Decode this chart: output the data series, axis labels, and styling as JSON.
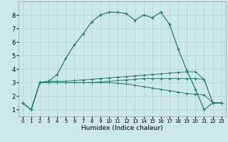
{
  "xlabel": "Humidex (Indice chaleur)",
  "background_color": "#cce8e8",
  "grid_color": "#b8d8d8",
  "line_color": "#267a6a",
  "xlim": [
    -0.5,
    23.5
  ],
  "ylim": [
    0.5,
    9.0
  ],
  "xticks": [
    0,
    1,
    2,
    3,
    4,
    5,
    6,
    7,
    8,
    9,
    10,
    11,
    12,
    13,
    14,
    15,
    16,
    17,
    18,
    19,
    20,
    21,
    22,
    23
  ],
  "yticks": [
    1,
    2,
    3,
    4,
    5,
    6,
    7,
    8
  ],
  "line1_x": [
    0,
    1,
    2,
    3,
    4,
    5,
    6,
    7,
    8,
    9,
    10,
    11,
    12,
    13,
    14,
    15,
    16,
    17,
    18,
    19,
    20,
    21,
    22,
    23
  ],
  "line1_y": [
    1.5,
    1.0,
    3.0,
    3.1,
    3.6,
    4.8,
    5.8,
    6.6,
    7.5,
    8.0,
    8.2,
    8.2,
    8.1,
    7.6,
    8.0,
    7.8,
    8.2,
    7.3,
    5.5,
    3.9,
    2.5,
    1.0,
    1.5,
    1.5
  ],
  "line2_x": [
    0,
    1,
    2,
    3,
    4,
    5,
    6,
    7,
    8,
    9,
    10,
    11,
    12,
    13,
    14,
    15,
    16,
    17,
    18,
    19,
    20,
    21,
    22,
    23
  ],
  "line2_y": [
    1.5,
    1.0,
    3.0,
    3.1,
    3.1,
    3.1,
    3.15,
    3.2,
    3.25,
    3.3,
    3.35,
    3.4,
    3.45,
    3.5,
    3.55,
    3.6,
    3.65,
    3.7,
    3.75,
    3.8,
    3.8,
    3.25,
    1.5,
    1.5
  ],
  "line3_x": [
    0,
    1,
    2,
    3,
    4,
    5,
    6,
    7,
    8,
    9,
    10,
    11,
    12,
    13,
    14,
    15,
    16,
    17,
    18,
    19,
    20,
    21,
    22,
    23
  ],
  "line3_y": [
    1.5,
    1.0,
    3.0,
    3.0,
    3.0,
    3.0,
    3.0,
    3.0,
    3.0,
    3.05,
    3.1,
    3.15,
    3.2,
    3.25,
    3.3,
    3.3,
    3.3,
    3.3,
    3.3,
    3.3,
    3.3,
    3.25,
    1.5,
    1.5
  ],
  "line4_x": [
    0,
    1,
    2,
    3,
    4,
    5,
    6,
    7,
    8,
    9,
    10,
    11,
    12,
    13,
    14,
    15,
    16,
    17,
    18,
    19,
    20,
    21,
    22,
    23
  ],
  "line4_y": [
    1.5,
    1.0,
    3.0,
    3.0,
    3.0,
    3.0,
    3.0,
    3.0,
    3.0,
    3.0,
    3.0,
    2.95,
    2.9,
    2.8,
    2.7,
    2.6,
    2.5,
    2.4,
    2.3,
    2.2,
    2.15,
    2.1,
    1.5,
    1.5
  ]
}
